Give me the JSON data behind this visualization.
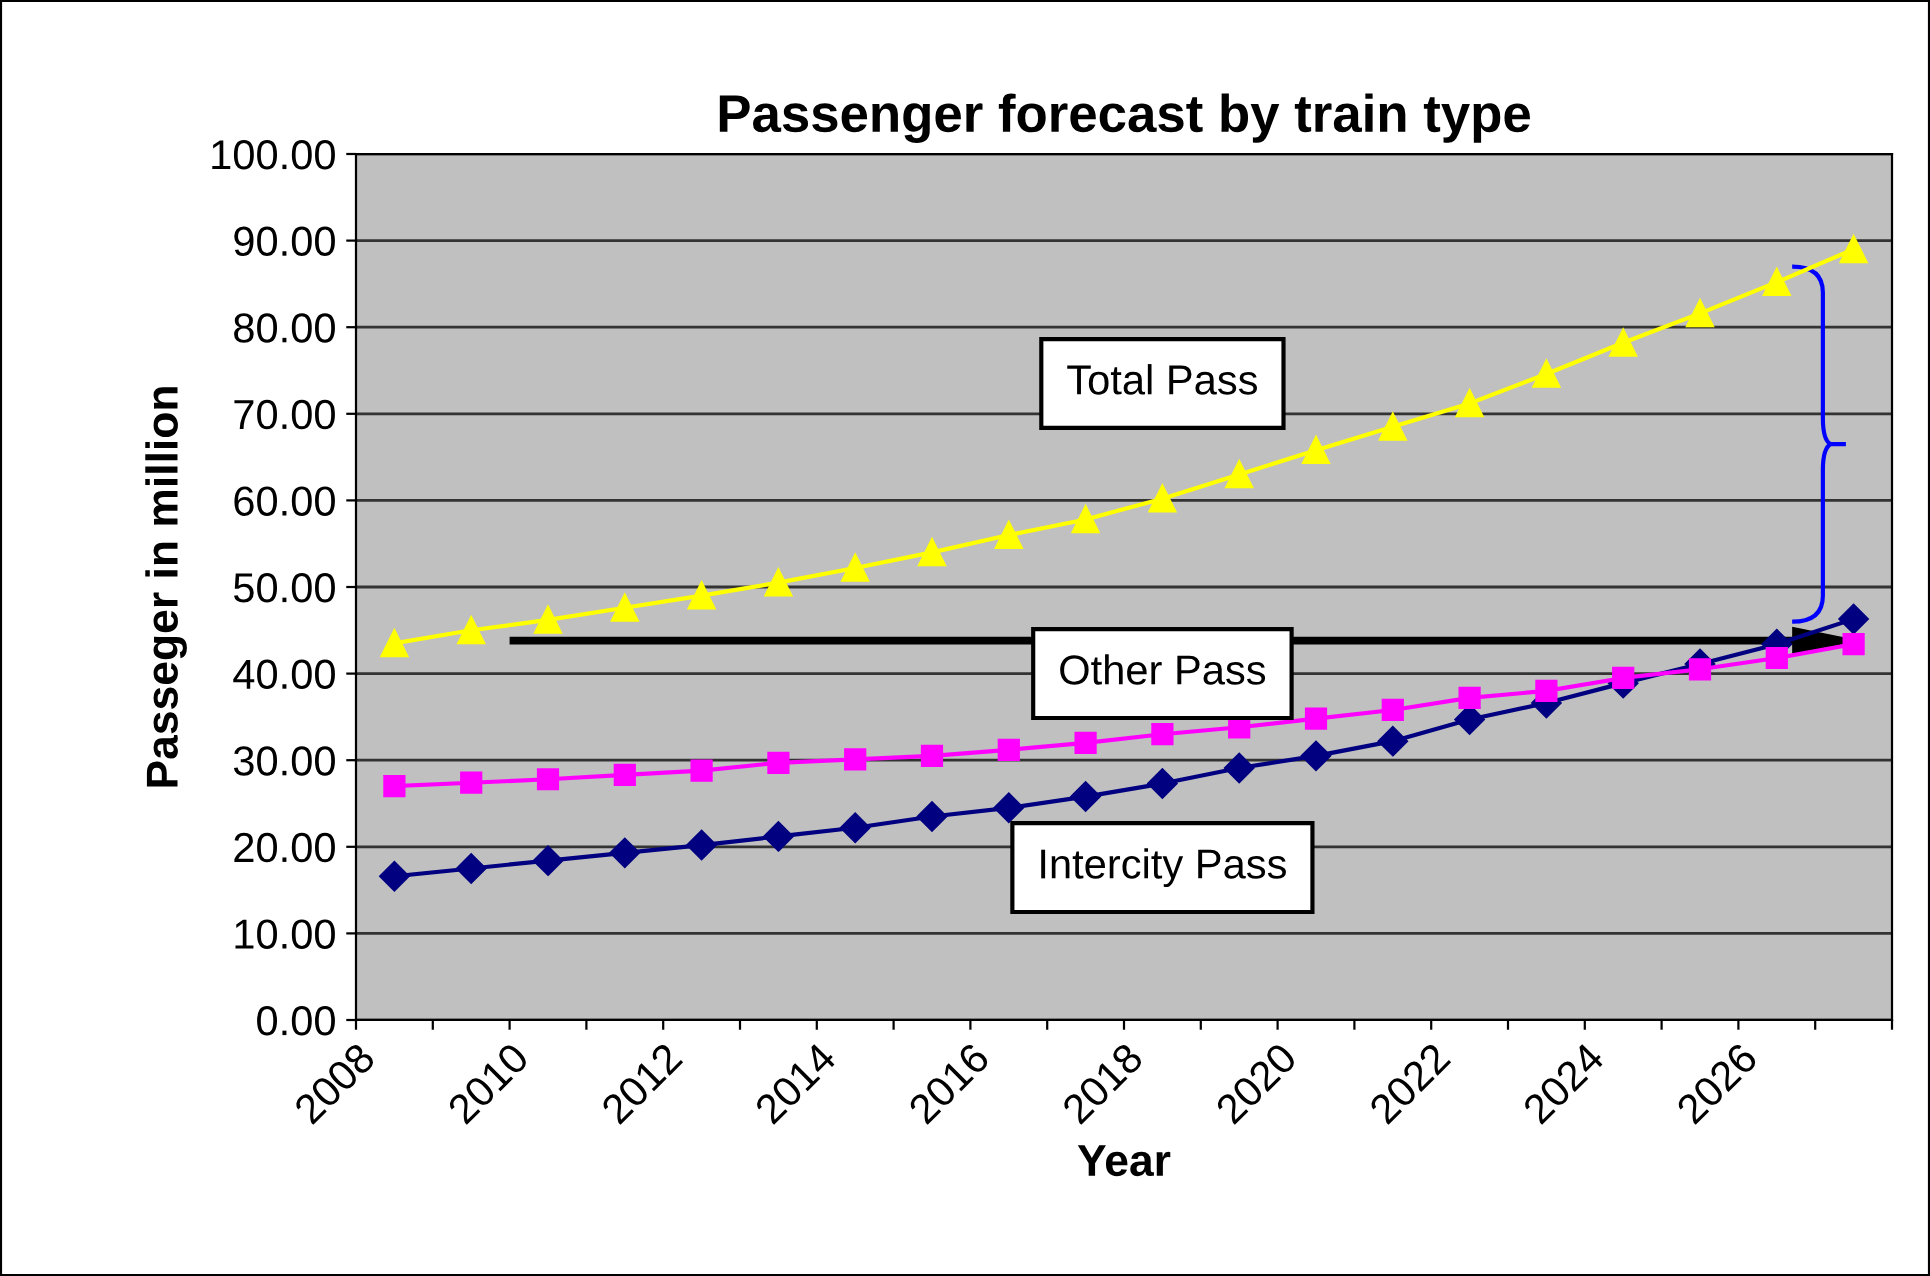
{
  "chart_data": {
    "type": "line",
    "title": "Passenger forecast by train type",
    "xlabel": "Year",
    "ylabel": "Passeger in million",
    "x": [
      2008.5,
      2009.5,
      2010.5,
      2011.5,
      2012.5,
      2013.5,
      2014.5,
      2015.5,
      2016.5,
      2017.5,
      2018.5,
      2019.5,
      2020.5,
      2021.5,
      2022.5,
      2023.5,
      2024.5,
      2025.5,
      2026.5,
      2027.5
    ],
    "series": [
      {
        "name": "Intercity Pass",
        "color": "#000080",
        "marker": "diamond",
        "values": [
          16.6,
          17.5,
          18.4,
          19.3,
          20.2,
          21.2,
          22.2,
          23.5,
          24.5,
          25.8,
          27.3,
          29.1,
          30.5,
          32.2,
          34.7,
          36.6,
          38.9,
          41.1,
          43.4,
          46.3
        ]
      },
      {
        "name": "Other Pass",
        "color": "#ff00ff",
        "marker": "square",
        "values": [
          27.0,
          27.4,
          27.8,
          28.3,
          28.8,
          29.7,
          30.1,
          30.5,
          31.2,
          32.0,
          33.0,
          33.8,
          34.8,
          35.8,
          37.2,
          38.0,
          39.5,
          40.5,
          41.8,
          43.4
        ]
      },
      {
        "name": "Total Pass",
        "color": "#ffff00",
        "marker": "triangle",
        "values": [
          43.5,
          45.0,
          46.2,
          47.6,
          49.0,
          50.5,
          52.2,
          54.0,
          56.0,
          57.8,
          60.2,
          63.0,
          65.8,
          68.5,
          71.2,
          74.6,
          78.2,
          81.6,
          85.2,
          89.0
        ]
      }
    ],
    "xlim": [
      2008,
      2028
    ],
    "xticks": [
      2008,
      {
        "value": 2009,
        "label": null
      },
      2010,
      {
        "value": 2011,
        "label": null
      },
      2012,
      {
        "value": 2013,
        "label": null
      },
      2014,
      {
        "value": 2015,
        "label": null
      },
      2016,
      {
        "value": 2017,
        "label": null
      },
      2018,
      {
        "value": 2019,
        "label": null
      },
      2020,
      {
        "value": 2021,
        "label": null
      },
      2022,
      {
        "value": 2023,
        "label": null
      },
      2024,
      {
        "value": 2025,
        "label": null
      },
      2026,
      {
        "value": 2027,
        "label": null
      },
      {
        "value": 2028,
        "label": null
      }
    ],
    "ylim": [
      0,
      100
    ],
    "yticks": [
      {
        "value": 0,
        "label": "0.00"
      },
      {
        "value": 10,
        "label": "10.00"
      },
      {
        "value": 20,
        "label": "20.00"
      },
      {
        "value": 30,
        "label": "30.00"
      },
      {
        "value": 40,
        "label": "40.00"
      },
      {
        "value": 50,
        "label": "50.00"
      },
      {
        "value": 60,
        "label": "60.00"
      },
      {
        "value": 70,
        "label": "70.00"
      },
      {
        "value": 80,
        "label": "80.00"
      },
      {
        "value": 90,
        "label": "90.00"
      },
      {
        "value": 100,
        "label": "100.00"
      }
    ],
    "grid": "y",
    "legend": false,
    "line_style": "solid"
  }
}
